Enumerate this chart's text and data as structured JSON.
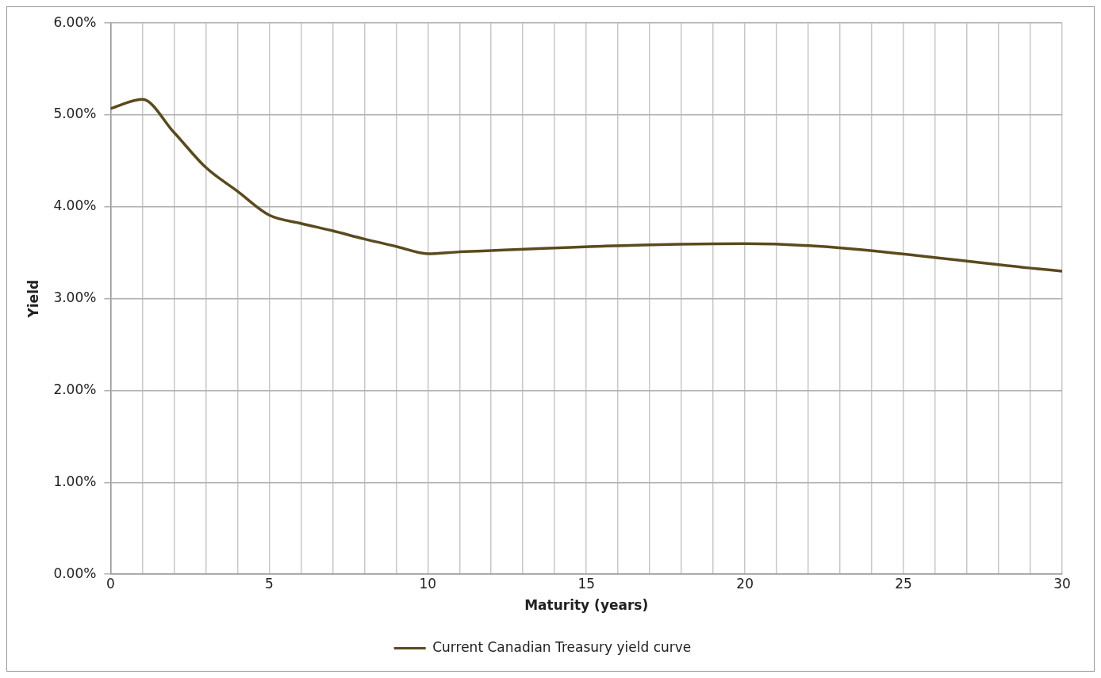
{
  "chart_data": {
    "type": "line",
    "xlabel": "Maturity (years)",
    "ylabel": "Yield",
    "x": [
      0,
      1,
      2,
      3,
      4,
      5,
      6,
      7,
      8,
      9,
      10,
      11,
      20,
      30
    ],
    "series": [
      {
        "name": "Current Canadian Treasury yield curve",
        "color": "#5b4a1e",
        "values": [
          5.07,
          5.17,
          4.81,
          4.43,
          4.17,
          3.91,
          3.82,
          3.74,
          3.65,
          3.57,
          3.49,
          3.51,
          3.6,
          3.3
        ]
      }
    ],
    "xlim": [
      0,
      30
    ],
    "xticks": [
      0,
      {
        "value": 1,
        "label": null
      },
      {
        "value": 2,
        "label": null
      },
      {
        "value": 3,
        "label": null
      },
      {
        "value": 4,
        "label": null
      },
      5,
      {
        "value": 6,
        "label": null
      },
      {
        "value": 7,
        "label": null
      },
      {
        "value": 8,
        "label": null
      },
      {
        "value": 9,
        "label": null
      },
      10,
      {
        "value": 11,
        "label": null
      },
      {
        "value": 12,
        "label": null
      },
      {
        "value": 13,
        "label": null
      },
      {
        "value": 14,
        "label": null
      },
      15,
      {
        "value": 16,
        "label": null
      },
      {
        "value": 17,
        "label": null
      },
      {
        "value": 18,
        "label": null
      },
      {
        "value": 19,
        "label": null
      },
      20,
      {
        "value": 21,
        "label": null
      },
      {
        "value": 22,
        "label": null
      },
      {
        "value": 23,
        "label": null
      },
      {
        "value": 24,
        "label": null
      },
      25,
      {
        "value": 26,
        "label": null
      },
      {
        "value": 27,
        "label": null
      },
      {
        "value": 28,
        "label": null
      },
      {
        "value": 29,
        "label": null
      },
      30
    ],
    "ylim": [
      0,
      6
    ],
    "yticks": [
      {
        "value": 0,
        "label": "0.00%"
      },
      {
        "value": 1,
        "label": "1.00%"
      },
      {
        "value": 2,
        "label": "2.00%"
      },
      {
        "value": 3,
        "label": "3.00%"
      },
      {
        "value": 4,
        "label": "4.00%"
      },
      {
        "value": 5,
        "label": "5.00%"
      },
      {
        "value": 6,
        "label": "6.00%"
      }
    ],
    "grid": true,
    "legend": "bottom",
    "marker": "none",
    "line_style": "solid"
  }
}
